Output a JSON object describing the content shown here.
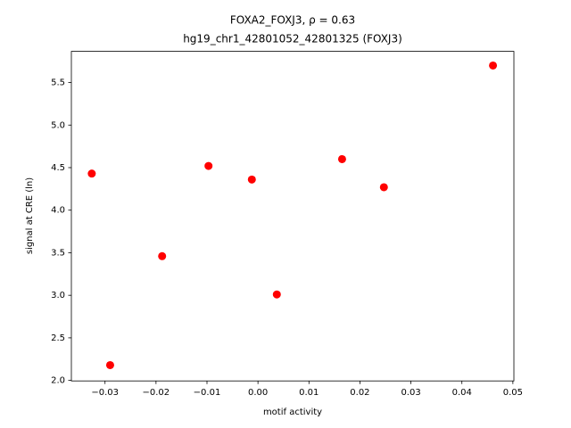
{
  "chart_data": {
    "type": "scatter",
    "title": "FOXA2_FOXJ3, ρ = 0.63",
    "subtitle": "hg19_chr1_42801052_42801325 (FOXJ3)",
    "x_label": "motif activity",
    "y_label": "signal at CRE (ln)",
    "color": "#ff0000",
    "x": [
      -0.0326,
      -0.029,
      -0.0188,
      -0.0097,
      -0.0012,
      0.0037,
      0.0165,
      0.0247,
      0.0461
    ],
    "values": [
      4.43,
      2.18,
      3.46,
      4.52,
      4.36,
      3.01,
      4.6,
      4.27,
      5.7
    ],
    "xlim": [
      -0.0366,
      0.0502
    ],
    "ylim": [
      1.994,
      5.866
    ],
    "xticks": [
      {
        "value": -0.03,
        "label": "−0.03"
      },
      {
        "value": -0.02,
        "label": "−0.02"
      },
      {
        "value": -0.01,
        "label": "−0.01"
      },
      {
        "value": 0,
        "label": "0.00"
      },
      0.01,
      0.02,
      0.03,
      0.04,
      0.05
    ],
    "yticks": [
      {
        "value": 2,
        "label": "2.0"
      },
      2.5,
      {
        "value": 3,
        "label": "3.0"
      },
      3.5,
      {
        "value": 4,
        "label": "4.0"
      },
      4.5,
      {
        "value": 5,
        "label": "5.0"
      },
      5.5
    ],
    "grid": false
  }
}
